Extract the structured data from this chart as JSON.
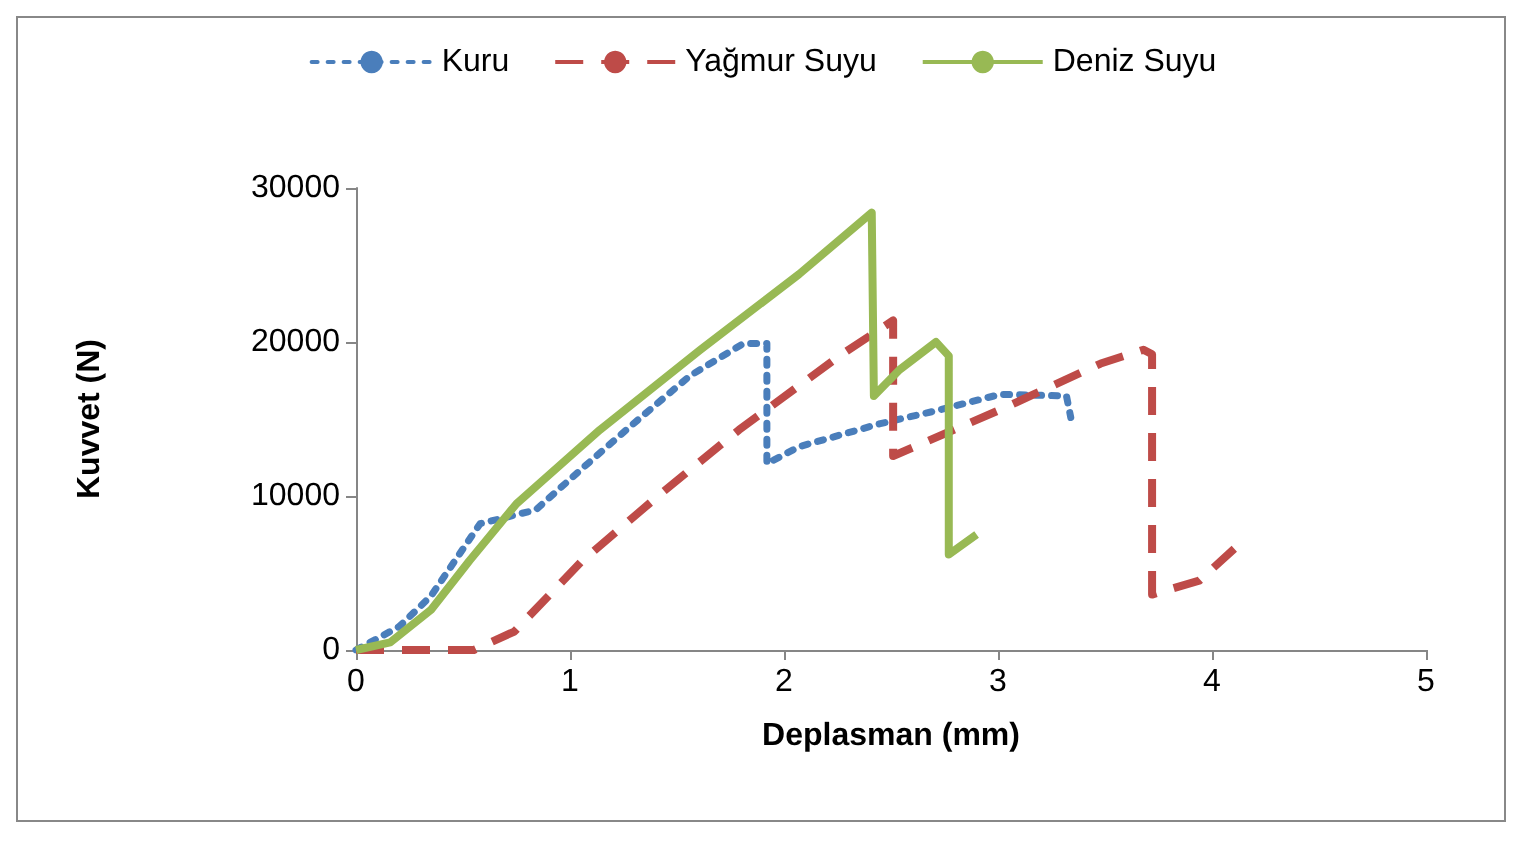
{
  "chart_data": {
    "type": "line",
    "xlabel": "Deplasman (mm)",
    "ylabel": "Kuvvet (N)",
    "xlim": [
      0,
      5
    ],
    "xticks": [
      0,
      1,
      2,
      3,
      4,
      5
    ],
    "ylim": [
      0,
      30000
    ],
    "yticks": [
      0,
      10000,
      20000,
      30000
    ],
    "grid": false,
    "legend": "top",
    "marker": "none",
    "series": [
      {
        "name": "Kuru",
        "color": "#4a7ebb",
        "line_style": "dotted",
        "x": [
          0,
          0.2,
          0.35,
          0.58,
          0.84,
          1.05,
          1.28,
          1.56,
          1.81,
          1.92,
          1.92,
          2.07,
          2.45,
          2.73,
          3.01,
          3.32,
          3.34
        ],
        "values": [
          0,
          1500,
          3500,
          8200,
          9100,
          11700,
          14500,
          17800,
          19900,
          19900,
          12100,
          13200,
          14700,
          15600,
          16600,
          16500,
          15100
        ]
      },
      {
        "name": "Yağmur Suyu",
        "color": "#be4b48",
        "line_style": "dashed",
        "x": [
          0,
          0.55,
          0.74,
          1.05,
          1.42,
          1.79,
          2.26,
          2.51,
          2.51,
          3.01,
          3.48,
          3.68,
          3.72,
          3.72,
          3.94,
          4.13
        ],
        "values": [
          0,
          0,
          1200,
          5700,
          10100,
          14300,
          19100,
          21400,
          12600,
          15600,
          18600,
          19500,
          19200,
          3600,
          4500,
          6900
        ]
      },
      {
        "name": "Deniz Suyu",
        "color": "#98b954",
        "line_style": "solid",
        "x": [
          0,
          0.16,
          0.35,
          0.53,
          0.75,
          1.14,
          1.61,
          2.07,
          2.41,
          2.42,
          2.54,
          2.71,
          2.77,
          2.77,
          2.9
        ],
        "values": [
          0,
          500,
          2600,
          5800,
          9500,
          14300,
          19500,
          24400,
          28400,
          16500,
          18200,
          20000,
          19100,
          6200,
          7500
        ]
      }
    ]
  }
}
